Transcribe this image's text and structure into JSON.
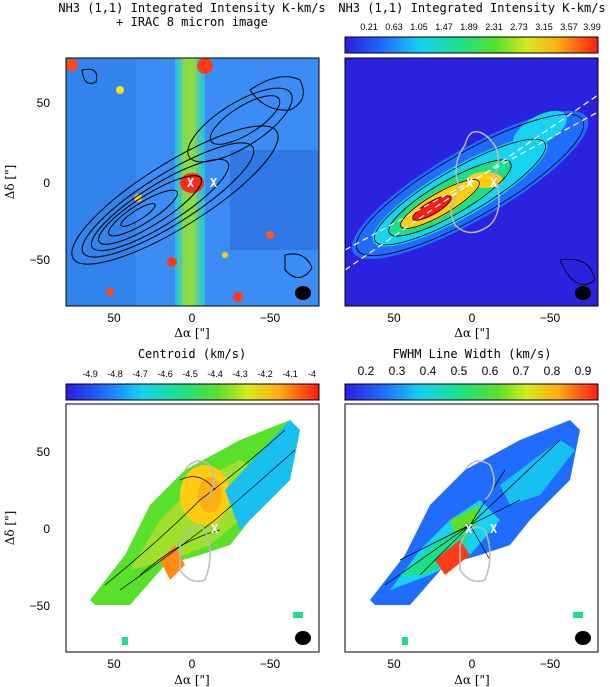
{
  "panels": [
    {
      "title_line1": "NH3 (1,1) Integrated Intensity K-km/s",
      "title_line2": "+ IRAC 8 micron image"
    },
    {
      "title_line1": "NH3 (1,1) Integrated Intensity K-km/s",
      "colorbar_ticks": [
        "0.21",
        "0.63",
        "1.05",
        "1.47",
        "1.89",
        "2.31",
        "2.73",
        "3.15",
        "3.57",
        "3.99"
      ]
    },
    {
      "title_line1": "Centroid (km/s)",
      "colorbar_ticks": [
        "-4.9",
        "-4.8",
        "-4.7",
        "-4.6",
        "-4.5",
        "-4.4",
        "-4.3",
        "-4.2",
        "-4.1",
        "-4"
      ]
    },
    {
      "title_line1": "FWHM Line Width (km/s)",
      "colorbar_ticks": [
        "0.2",
        "0.3",
        "0.4",
        "0.5",
        "0.6",
        "0.7",
        "0.8",
        "0.9"
      ]
    }
  ],
  "axes": {
    "xlabel": "Δα [\"]",
    "ylabel": "Δδ [\"]",
    "x_ticks": [
      "50",
      "0",
      "−50"
    ],
    "y_ticks": [
      "50",
      "0",
      "−50"
    ]
  },
  "markers": {
    "source_symbol": "X"
  },
  "chart_data": [
    {
      "type": "heatmap",
      "title": "NH3 (1,1) Integrated Intensity K-km/s + IRAC 8 micron image",
      "xlabel": "Δα [\"]",
      "ylabel": "Δδ [\"]",
      "xlim": [
        80,
        -80
      ],
      "ylim": [
        -80,
        80
      ],
      "x_ticks": [
        50,
        0,
        -50
      ],
      "y_ticks": [
        50,
        0,
        -50
      ]
    },
    {
      "type": "heatmap",
      "title": "NH3 (1,1) Integrated Intensity K-km/s",
      "colorbar": [
        0.21,
        0.63,
        1.05,
        1.47,
        1.89,
        2.31,
        2.73,
        3.15,
        3.57,
        3.99
      ],
      "xlabel": "Δα [\"]",
      "xlim": [
        80,
        -80
      ],
      "ylim": [
        -80,
        80
      ]
    },
    {
      "type": "heatmap",
      "title": "Centroid (km/s)",
      "colorbar": [
        -4.9,
        -4.8,
        -4.7,
        -4.6,
        -4.5,
        -4.4,
        -4.3,
        -4.2,
        -4.1,
        -4.0
      ],
      "xlabel": "Δα [\"]",
      "ylabel": "Δδ [\"]",
      "xlim": [
        80,
        -80
      ],
      "ylim": [
        -80,
        80
      ]
    },
    {
      "type": "heatmap",
      "title": "FWHM Line Width (km/s)",
      "colorbar": [
        0.2,
        0.3,
        0.4,
        0.5,
        0.6,
        0.7,
        0.8,
        0.9
      ],
      "xlabel": "Δα [\"]",
      "xlim": [
        80,
        -80
      ],
      "ylim": [
        -80,
        80
      ]
    }
  ]
}
